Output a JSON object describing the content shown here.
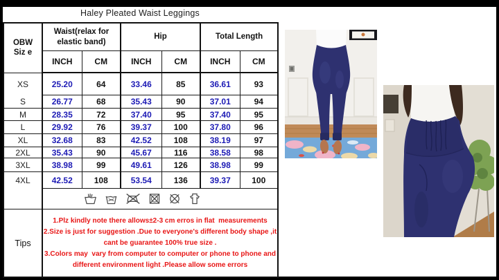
{
  "title": "Haley Pleated Waist Leggings",
  "size_table": {
    "corner_header_line1": "OBW",
    "corner_header_line2": "Siz e",
    "column_groups": [
      {
        "label": "Waist(relax for elastic band)"
      },
      {
        "label": "Hip"
      },
      {
        "label": "Total Length"
      }
    ],
    "unit_headers": {
      "inch": "INCH",
      "cm": "CM"
    },
    "rows": [
      {
        "size": "XS",
        "waist_inch": "25.20",
        "waist_cm": "64",
        "hip_inch": "33.46",
        "hip_cm": "85",
        "length_inch": "36.61",
        "length_cm": "93"
      },
      {
        "size": "S",
        "waist_inch": "26.77",
        "waist_cm": "68",
        "hip_inch": "35.43",
        "hip_cm": "90",
        "length_inch": "37.01",
        "length_cm": "94"
      },
      {
        "size": "M",
        "waist_inch": "28.35",
        "waist_cm": "72",
        "hip_inch": "37.40",
        "hip_cm": "95",
        "length_inch": "37.40",
        "length_cm": "95"
      },
      {
        "size": "L",
        "waist_inch": "29.92",
        "waist_cm": "76",
        "hip_inch": "39.37",
        "hip_cm": "100",
        "length_inch": "37.80",
        "length_cm": "96"
      },
      {
        "size": "XL",
        "waist_inch": "32.68",
        "waist_cm": "83",
        "hip_inch": "42.52",
        "hip_cm": "108",
        "length_inch": "38.19",
        "length_cm": "97"
      },
      {
        "size": "2XL",
        "waist_inch": "35.43",
        "waist_cm": "90",
        "hip_inch": "45.67",
        "hip_cm": "116",
        "length_inch": "38.58",
        "length_cm": "98"
      },
      {
        "size": "3XL",
        "waist_inch": "38.98",
        "waist_cm": "99",
        "hip_inch": "49.61",
        "hip_cm": "126",
        "length_inch": "38.98",
        "length_cm": "99"
      },
      {
        "size": "4XL",
        "waist_inch": "42.52",
        "waist_cm": "108",
        "hip_inch": "53.54",
        "hip_cm": "136",
        "length_inch": "39.37",
        "length_cm": "100"
      }
    ]
  },
  "care_icons": [
    {
      "name": "hand-wash-icon",
      "meaning": "hand wash"
    },
    {
      "name": "basin-wash-icon",
      "meaning": "gentle wash"
    },
    {
      "name": "do-not-iron-icon",
      "meaning": "do not iron"
    },
    {
      "name": "do-not-tumble-dry-icon",
      "meaning": "do not tumble dry"
    },
    {
      "name": "do-not-dry-clean-icon",
      "meaning": "do not dry clean"
    },
    {
      "name": "hang-dry-icon",
      "meaning": "hang dry"
    }
  ],
  "tips": {
    "label": "Tips",
    "lines": [
      "1.Plz kindly note there allows±2-3 cm erros in flat  measurements",
      "2.Size is just for suggestion .Due to everyone's different body shape ,it cant be guarantee 100% true size .",
      "3.Colors may  vary from computer to computer or phone to phone and different environment light .Please allow some errors"
    ]
  },
  "photos": [
    {
      "alt": "Front view: model in navy pleated high-waist leggings and white top standing on a floral blue rug"
    },
    {
      "alt": "Side close-up: navy ruched pleated waistband and pocket of the leggings"
    }
  ],
  "colors": {
    "inch_text": "#1d1bb5",
    "tips_text": "#e81616",
    "table_border": "#111111",
    "leggings_navy": "#2e3170",
    "rug_blue": "#74a9d9",
    "rug_pink": "#f0b4c8",
    "rug_cream": "#ecd9a8",
    "wood_floor": "#c08a58",
    "wall_beige": "#dcd6cb",
    "plant_green": "#7da253"
  }
}
